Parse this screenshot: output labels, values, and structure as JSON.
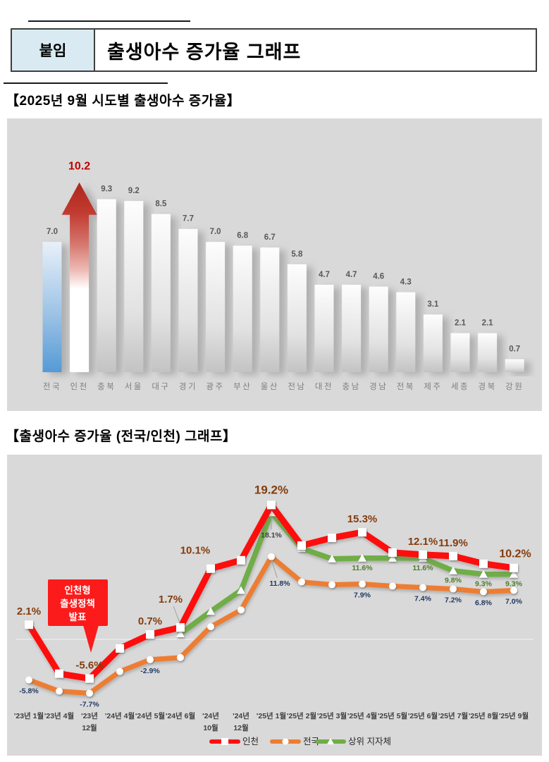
{
  "header": {
    "tag": "붙임",
    "title": "출생아수 증가율 그래프",
    "tag_bg": "#D9EAF2"
  },
  "sections": [
    {
      "heading": "【2025년 9월 시도별 출생아수 증가율】"
    },
    {
      "heading": "【출생아수 증가율 (전국/인천) 그래프】"
    }
  ],
  "colors": {
    "panel_bg": "#D9D9D9",
    "incheon_red": "#FE1010",
    "national_orange": "#ED7D31",
    "upper_gov_green": "#70AD47",
    "red_label_brown": "#843C0C",
    "orange_label_navy": "#1F3864",
    "green_label": "#4E7A27",
    "highlight_value_red": "#C00000",
    "bar_value_gray": "#595959",
    "bar_category_gray": "#7F7F7F",
    "national_bar_blue": "#5B9BD5"
  },
  "chart_data": [
    {
      "type": "bar",
      "title": "2025년 9월 시도별 출생아수 증가율",
      "categories": [
        "전국",
        "인천",
        "충북",
        "서울",
        "대구",
        "경기",
        "광주",
        "부산",
        "울산",
        "전남",
        "대전",
        "충남",
        "경남",
        "전북",
        "제주",
        "세종",
        "경북",
        "강원"
      ],
      "values": [
        7.0,
        10.2,
        9.3,
        9.2,
        8.5,
        7.7,
        7.0,
        6.8,
        6.7,
        5.8,
        4.7,
        4.7,
        4.6,
        4.3,
        3.1,
        2.1,
        2.1,
        0.7
      ],
      "value_labels": [
        "7.0",
        "10.2",
        "9.3",
        "9.2",
        "8.5",
        "7.7",
        "7.0",
        "6.8",
        "6.7",
        "5.8",
        "4.7",
        "4.7",
        "4.6",
        "4.3",
        "3.1",
        "2.1",
        "2.1",
        "0.7"
      ],
      "ylim": [
        0,
        11
      ],
      "grid": false,
      "highlight": {
        "category": "인천",
        "style": "red-up-arrow",
        "label_color": "#C00000"
      },
      "national": {
        "category": "전국",
        "style": "blue-gradient-bar"
      },
      "default_bar_style": "white-gray-gradient",
      "value_label_color": "#595959",
      "category_label_color": "#7F7F7F"
    },
    {
      "type": "line",
      "ylim": [
        -9,
        21
      ],
      "grid": "zero-line-only",
      "legend_position": "bottom-center",
      "categories": [
        [
          "'23년 1월"
        ],
        [
          "'23년 4월"
        ],
        [
          "'23년",
          "12월"
        ],
        [
          "'24년 4월"
        ],
        [
          "'24년 5월"
        ],
        [
          "'24년 6월"
        ],
        [
          "'24년",
          "10월"
        ],
        [
          "'24년",
          "12월"
        ],
        [
          "'25년 1월"
        ],
        [
          "'25년 2월"
        ],
        [
          "'25년 3월"
        ],
        [
          "'25년 4월"
        ],
        [
          "'25년 5월"
        ],
        [
          "'25년 6월"
        ],
        [
          "'25년 7월"
        ],
        [
          "'25년 8월"
        ],
        [
          "'25년 9월"
        ]
      ],
      "series": [
        {
          "name": "인천",
          "color": "#FE1010",
          "marker": "square",
          "label_color": "#843C0C",
          "values": [
            2.1,
            -4.9,
            -5.6,
            -1.3,
            0.7,
            1.7,
            10.1,
            11.3,
            19.2,
            13.4,
            14.5,
            15.3,
            12.4,
            12.1,
            11.9,
            10.8,
            10.2
          ],
          "labels": [
            {
              "i": 0,
              "text": "2.1%"
            },
            {
              "i": 2,
              "text": "-5.6%"
            },
            {
              "i": 4,
              "text": "0.7%"
            },
            {
              "i": 5,
              "text": "1.7%"
            },
            {
              "i": 6,
              "text": "10.1%"
            },
            {
              "i": 8,
              "text": "19.2%"
            },
            {
              "i": 11,
              "text": "15.3%"
            },
            {
              "i": 13,
              "text": "12.1%"
            },
            {
              "i": 14,
              "text": "11.9%"
            },
            {
              "i": 16,
              "text": "10.2%"
            }
          ]
        },
        {
          "name": "전국",
          "color": "#ED7D31",
          "marker": "circle",
          "label_color": "#1F3864",
          "values": [
            -5.8,
            -7.4,
            -7.7,
            -4.6,
            -2.9,
            -2.6,
            1.8,
            4.2,
            11.8,
            8.2,
            7.8,
            7.9,
            7.6,
            7.4,
            7.2,
            6.8,
            7.0
          ],
          "labels": [
            {
              "i": 0,
              "text": "-5.8%"
            },
            {
              "i": 2,
              "text": "-7.7%"
            },
            {
              "i": 4,
              "text": "-2.9%"
            },
            {
              "i": 8,
              "text": "11.8%"
            },
            {
              "i": 11,
              "text": "7.9%"
            },
            {
              "i": 13,
              "text": "7.4%"
            },
            {
              "i": 14,
              "text": "7.2%"
            },
            {
              "i": 15,
              "text": "6.8%"
            },
            {
              "i": 16,
              "text": "7.0%"
            }
          ]
        },
        {
          "name": "상위 지자체",
          "color": "#70AD47",
          "marker": "triangle",
          "label_color": "#4E7A27",
          "values": [
            null,
            null,
            null,
            null,
            null,
            0.8,
            4.0,
            7.0,
            18.1,
            13.0,
            11.5,
            11.6,
            11.6,
            11.6,
            9.8,
            9.3,
            9.3
          ],
          "labels": [
            {
              "i": 8,
              "text": "18.1%"
            },
            {
              "i": 11,
              "text": "11.6%"
            },
            {
              "i": 13,
              "text": "11.6%"
            },
            {
              "i": 14,
              "text": "9.8%"
            },
            {
              "i": 15,
              "text": "9.3%"
            },
            {
              "i": 16,
              "text": "9.3%"
            }
          ]
        }
      ],
      "annotation": {
        "lines": [
          "인천형",
          "출생정책",
          "발표"
        ],
        "anchor_index": 2,
        "bg": "#FB1B1B",
        "text_color": "#FFFFFF"
      }
    }
  ]
}
